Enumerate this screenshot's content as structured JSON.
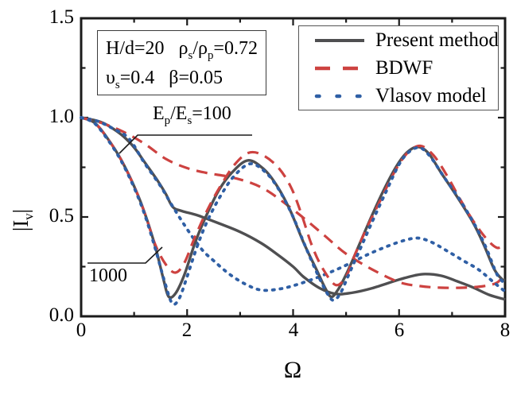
{
  "figure": {
    "y_tick_labels": [
      "0.0",
      "0.5",
      "1.0",
      "1.5"
    ],
    "x_tick_labels": [
      "0",
      "2",
      "4",
      "6",
      "8"
    ],
    "x_axis_title": "Ω",
    "y_axis_title_pre": "|I",
    "y_axis_title_sub": "v",
    "y_axis_title_post": "|",
    "params_box": {
      "hd": "H/d=20",
      "rho_head": "ρ",
      "rho_sub_s": "s",
      "rho_mid": "/ρ",
      "rho_sub_p": "p",
      "rho_val": "=0.72",
      "nu_head": "υ",
      "nu_sub_s": "s",
      "nu_val": "=0.4",
      "beta": "β=0.05"
    },
    "annotations": {
      "ep_head": "E",
      "ep_sub1": "p",
      "ep_mid": "/E",
      "ep_sub2": "s",
      "ep_val": "=100",
      "thousand": "1000"
    }
  },
  "chart_data": {
    "type": "line",
    "title": "",
    "xlabel": "Ω",
    "ylabel": "|Iv|",
    "xlim": [
      0,
      8
    ],
    "ylim": [
      0,
      1.5
    ],
    "x_ticks": [
      0,
      2,
      4,
      6,
      8
    ],
    "x_minor_ticks": [
      1,
      3,
      5,
      7
    ],
    "y_ticks": [
      0,
      0.5,
      1,
      1.5
    ],
    "y_minor_ticks": [
      0.25,
      0.75,
      1.25
    ],
    "grid": false,
    "legend_position": "top-right",
    "legend_entries": [
      {
        "label": "Present method",
        "color": "#4f4f51",
        "style": "solid"
      },
      {
        "label": "BDWF",
        "color": "#cd4240",
        "style": "dashed"
      },
      {
        "label": "Vlasov model",
        "color": "#2f5fa5",
        "style": "dotted"
      }
    ],
    "parameters_text": [
      "H/d=20",
      "ρs/ρp=0.72",
      "υs=0.4",
      "β=0.05"
    ],
    "annotations": [
      {
        "text": "Ep/Es=100",
        "refers_to": "upper slowly-decaying curve group"
      },
      {
        "text": "1000",
        "refers_to": "steeply oscillating curve group (Ep/Es=1000)"
      }
    ],
    "series": [
      {
        "name": "Present method",
        "group": "Ep/Es=100",
        "color": "#4f4f51",
        "style": "solid",
        "points": [
          [
            0,
            1.0
          ],
          [
            0.2,
            0.99
          ],
          [
            0.4,
            0.975
          ],
          [
            0.6,
            0.945
          ],
          [
            0.8,
            0.905
          ],
          [
            1.0,
            0.85
          ],
          [
            1.2,
            0.775
          ],
          [
            1.45,
            0.68
          ],
          [
            1.6,
            0.615
          ],
          [
            1.73,
            0.55
          ],
          [
            1.9,
            0.53
          ],
          [
            2.2,
            0.508
          ],
          [
            2.6,
            0.468
          ],
          [
            3.0,
            0.425
          ],
          [
            3.4,
            0.368
          ],
          [
            3.7,
            0.312
          ],
          [
            4.0,
            0.25
          ],
          [
            4.2,
            0.198
          ],
          [
            4.5,
            0.142
          ],
          [
            4.8,
            0.113
          ],
          [
            5.1,
            0.118
          ],
          [
            5.5,
            0.142
          ],
          [
            6.0,
            0.185
          ],
          [
            6.3,
            0.206
          ],
          [
            6.5,
            0.213
          ],
          [
            6.8,
            0.204
          ],
          [
            7.1,
            0.176
          ],
          [
            7.4,
            0.145
          ],
          [
            7.7,
            0.108
          ],
          [
            8.0,
            0.085
          ]
        ]
      },
      {
        "name": "BDWF",
        "group": "Ep/Es=100",
        "color": "#cd4240",
        "style": "dashed",
        "points": [
          [
            0,
            1.0
          ],
          [
            0.4,
            0.972
          ],
          [
            0.8,
            0.928
          ],
          [
            1.2,
            0.868
          ],
          [
            1.6,
            0.792
          ],
          [
            2.0,
            0.746
          ],
          [
            2.4,
            0.72
          ],
          [
            2.8,
            0.702
          ],
          [
            3.2,
            0.672
          ],
          [
            3.5,
            0.634
          ],
          [
            3.8,
            0.578
          ],
          [
            4.2,
            0.495
          ],
          [
            4.6,
            0.405
          ],
          [
            5.0,
            0.315
          ],
          [
            5.5,
            0.235
          ],
          [
            6.0,
            0.172
          ],
          [
            6.4,
            0.152
          ],
          [
            6.8,
            0.144
          ],
          [
            7.2,
            0.144
          ],
          [
            7.6,
            0.152
          ],
          [
            7.85,
            0.17
          ],
          [
            8.0,
            0.215
          ]
        ]
      },
      {
        "name": "Vlasov model",
        "group": "Ep/Es=100",
        "color": "#2f5fa5",
        "style": "dotted",
        "points": [
          [
            0,
            1.0
          ],
          [
            0.3,
            0.983
          ],
          [
            0.6,
            0.945
          ],
          [
            0.9,
            0.895
          ],
          [
            1.2,
            0.77
          ],
          [
            1.5,
            0.655
          ],
          [
            1.7,
            0.565
          ],
          [
            1.9,
            0.48
          ],
          [
            2.1,
            0.4
          ],
          [
            2.3,
            0.33
          ],
          [
            2.5,
            0.28
          ],
          [
            2.8,
            0.212
          ],
          [
            3.1,
            0.162
          ],
          [
            3.4,
            0.132
          ],
          [
            3.75,
            0.138
          ],
          [
            4.1,
            0.162
          ],
          [
            4.5,
            0.2
          ],
          [
            4.9,
            0.245
          ],
          [
            5.4,
            0.31
          ],
          [
            5.8,
            0.355
          ],
          [
            6.1,
            0.382
          ],
          [
            6.35,
            0.394
          ],
          [
            6.6,
            0.375
          ],
          [
            6.9,
            0.33
          ],
          [
            7.2,
            0.282
          ],
          [
            7.5,
            0.235
          ],
          [
            7.8,
            0.168
          ],
          [
            8.0,
            0.125
          ]
        ]
      },
      {
        "name": "Present method",
        "group": "Ep/Es=1000",
        "color": "#4f4f51",
        "style": "solid",
        "points": [
          [
            0,
            1.0
          ],
          [
            0.25,
            0.975
          ],
          [
            0.5,
            0.895
          ],
          [
            0.75,
            0.79
          ],
          [
            1.0,
            0.655
          ],
          [
            1.2,
            0.52
          ],
          [
            1.4,
            0.35
          ],
          [
            1.55,
            0.19
          ],
          [
            1.65,
            0.1
          ],
          [
            1.78,
            0.115
          ],
          [
            1.95,
            0.21
          ],
          [
            2.15,
            0.37
          ],
          [
            2.35,
            0.5
          ],
          [
            2.6,
            0.635
          ],
          [
            2.85,
            0.725
          ],
          [
            3.15,
            0.785
          ],
          [
            3.45,
            0.74
          ],
          [
            3.7,
            0.655
          ],
          [
            3.95,
            0.53
          ],
          [
            4.2,
            0.37
          ],
          [
            4.45,
            0.23
          ],
          [
            4.6,
            0.145
          ],
          [
            4.72,
            0.098
          ],
          [
            4.85,
            0.135
          ],
          [
            5.0,
            0.21
          ],
          [
            5.2,
            0.33
          ],
          [
            5.45,
            0.485
          ],
          [
            5.7,
            0.63
          ],
          [
            5.95,
            0.755
          ],
          [
            6.15,
            0.825
          ],
          [
            6.35,
            0.853
          ],
          [
            6.55,
            0.822
          ],
          [
            6.8,
            0.72
          ],
          [
            7.1,
            0.6
          ],
          [
            7.4,
            0.47
          ],
          [
            7.6,
            0.36
          ],
          [
            7.8,
            0.235
          ],
          [
            7.95,
            0.185
          ],
          [
            8.0,
            0.183
          ]
        ]
      },
      {
        "name": "BDWF",
        "group": "Ep/Es=1000",
        "color": "#cd4240",
        "style": "dashed",
        "points": [
          [
            0,
            1.0
          ],
          [
            0.25,
            0.975
          ],
          [
            0.5,
            0.895
          ],
          [
            0.75,
            0.79
          ],
          [
            1.0,
            0.655
          ],
          [
            1.2,
            0.52
          ],
          [
            1.4,
            0.36
          ],
          [
            1.6,
            0.26
          ],
          [
            1.78,
            0.22
          ],
          [
            1.95,
            0.27
          ],
          [
            2.15,
            0.4
          ],
          [
            2.4,
            0.545
          ],
          [
            2.65,
            0.665
          ],
          [
            2.9,
            0.765
          ],
          [
            3.15,
            0.822
          ],
          [
            3.4,
            0.815
          ],
          [
            3.7,
            0.755
          ],
          [
            3.95,
            0.655
          ],
          [
            4.15,
            0.52
          ],
          [
            4.35,
            0.36
          ],
          [
            4.55,
            0.245
          ],
          [
            4.8,
            0.158
          ],
          [
            5.0,
            0.2
          ],
          [
            5.15,
            0.3
          ],
          [
            5.4,
            0.45
          ],
          [
            5.65,
            0.585
          ],
          [
            5.9,
            0.72
          ],
          [
            6.15,
            0.82
          ],
          [
            6.4,
            0.858
          ],
          [
            6.65,
            0.81
          ],
          [
            6.9,
            0.71
          ],
          [
            7.15,
            0.59
          ],
          [
            7.4,
            0.48
          ],
          [
            7.65,
            0.39
          ],
          [
            7.85,
            0.345
          ],
          [
            8.0,
            0.362
          ]
        ]
      },
      {
        "name": "Vlasov model",
        "group": "Ep/Es=1000",
        "color": "#2f5fa5",
        "style": "dotted",
        "points": [
          [
            0,
            1.0
          ],
          [
            0.25,
            0.972
          ],
          [
            0.5,
            0.89
          ],
          [
            0.75,
            0.785
          ],
          [
            1.0,
            0.648
          ],
          [
            1.2,
            0.512
          ],
          [
            1.4,
            0.34
          ],
          [
            1.58,
            0.17
          ],
          [
            1.72,
            0.065
          ],
          [
            1.85,
            0.09
          ],
          [
            2.0,
            0.2
          ],
          [
            2.2,
            0.36
          ],
          [
            2.4,
            0.49
          ],
          [
            2.65,
            0.615
          ],
          [
            2.9,
            0.71
          ],
          [
            3.2,
            0.768
          ],
          [
            3.5,
            0.72
          ],
          [
            3.75,
            0.63
          ],
          [
            4.0,
            0.5
          ],
          [
            4.25,
            0.34
          ],
          [
            4.5,
            0.19
          ],
          [
            4.68,
            0.1
          ],
          [
            4.78,
            0.082
          ],
          [
            4.9,
            0.12
          ],
          [
            5.05,
            0.21
          ],
          [
            5.25,
            0.33
          ],
          [
            5.5,
            0.48
          ],
          [
            5.75,
            0.625
          ],
          [
            6.0,
            0.765
          ],
          [
            6.2,
            0.83
          ],
          [
            6.4,
            0.848
          ],
          [
            6.6,
            0.8
          ],
          [
            6.85,
            0.7
          ],
          [
            7.15,
            0.585
          ],
          [
            7.45,
            0.45
          ],
          [
            7.65,
            0.34
          ],
          [
            7.85,
            0.21
          ],
          [
            8.0,
            0.165
          ]
        ]
      }
    ]
  }
}
